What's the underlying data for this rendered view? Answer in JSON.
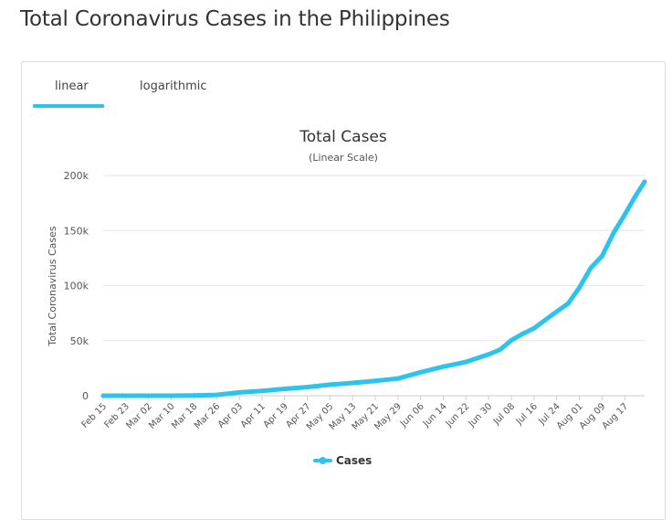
{
  "page": {
    "title": "Total Coronavirus Cases in the Philippines"
  },
  "tabs": [
    {
      "label": "linear",
      "active": true
    },
    {
      "label": "logarithmic",
      "active": false
    }
  ],
  "colors": {
    "accent": "#2ec3ef",
    "series": "#2ec3ef",
    "grid": "#e6e6e6"
  },
  "chart_data": {
    "type": "line",
    "title": "Total Cases",
    "subtitle": "(Linear Scale)",
    "ylabel": "Total Coronavirus Cases",
    "xlabel": "",
    "ylim": [
      0,
      200000
    ],
    "yticks": [
      0,
      50000,
      100000,
      150000,
      200000
    ],
    "ytick_labels": [
      "0",
      "50k",
      "100k",
      "150k",
      "200k"
    ],
    "xlim": [
      "2020-02-15",
      "2020-08-24"
    ],
    "xticks": [
      "2020-02-15",
      "2020-02-23",
      "2020-03-02",
      "2020-03-10",
      "2020-03-18",
      "2020-03-26",
      "2020-04-03",
      "2020-04-11",
      "2020-04-19",
      "2020-04-27",
      "2020-05-05",
      "2020-05-13",
      "2020-05-21",
      "2020-05-29",
      "2020-06-06",
      "2020-06-14",
      "2020-06-22",
      "2020-06-30",
      "2020-07-08",
      "2020-07-16",
      "2020-07-24",
      "2020-08-01",
      "2020-08-09",
      "2020-08-17"
    ],
    "xtick_labels": [
      "Feb 15",
      "Feb 23",
      "Mar 02",
      "Mar 10",
      "Mar 18",
      "Mar 26",
      "Apr 03",
      "Apr 11",
      "Apr 19",
      "Apr 27",
      "May 05",
      "May 13",
      "May 21",
      "May 29",
      "Jun 06",
      "Jun 14",
      "Jun 22",
      "Jun 30",
      "Jul 08",
      "Jul 16",
      "Jul 24",
      "Aug 01",
      "Aug 09",
      "Aug 17"
    ],
    "grid": true,
    "legend": {
      "position": "bottom-center"
    },
    "series": [
      {
        "name": "Cases",
        "x": [
          "2020-02-15",
          "2020-02-23",
          "2020-03-02",
          "2020-03-10",
          "2020-03-18",
          "2020-03-26",
          "2020-04-03",
          "2020-04-11",
          "2020-04-19",
          "2020-04-27",
          "2020-05-05",
          "2020-05-13",
          "2020-05-21",
          "2020-05-29",
          "2020-06-06",
          "2020-06-14",
          "2020-06-22",
          "2020-06-30",
          "2020-07-04",
          "2020-07-08",
          "2020-07-12",
          "2020-07-16",
          "2020-07-20",
          "2020-07-24",
          "2020-07-28",
          "2020-08-01",
          "2020-08-05",
          "2020-08-09",
          "2020-08-13",
          "2020-08-17",
          "2020-08-21",
          "2020-08-24"
        ],
        "y": [
          3,
          3,
          3,
          33,
          202,
          707,
          3018,
          4428,
          6259,
          7777,
          10004,
          11618,
          13434,
          15588,
          21340,
          26420,
          30682,
          37514,
          41830,
          50359,
          56259,
          61266,
          68898,
          76444,
          83673,
          98232,
          115980,
          126885,
          147526,
          164474,
          182365,
          194252
        ]
      }
    ]
  }
}
